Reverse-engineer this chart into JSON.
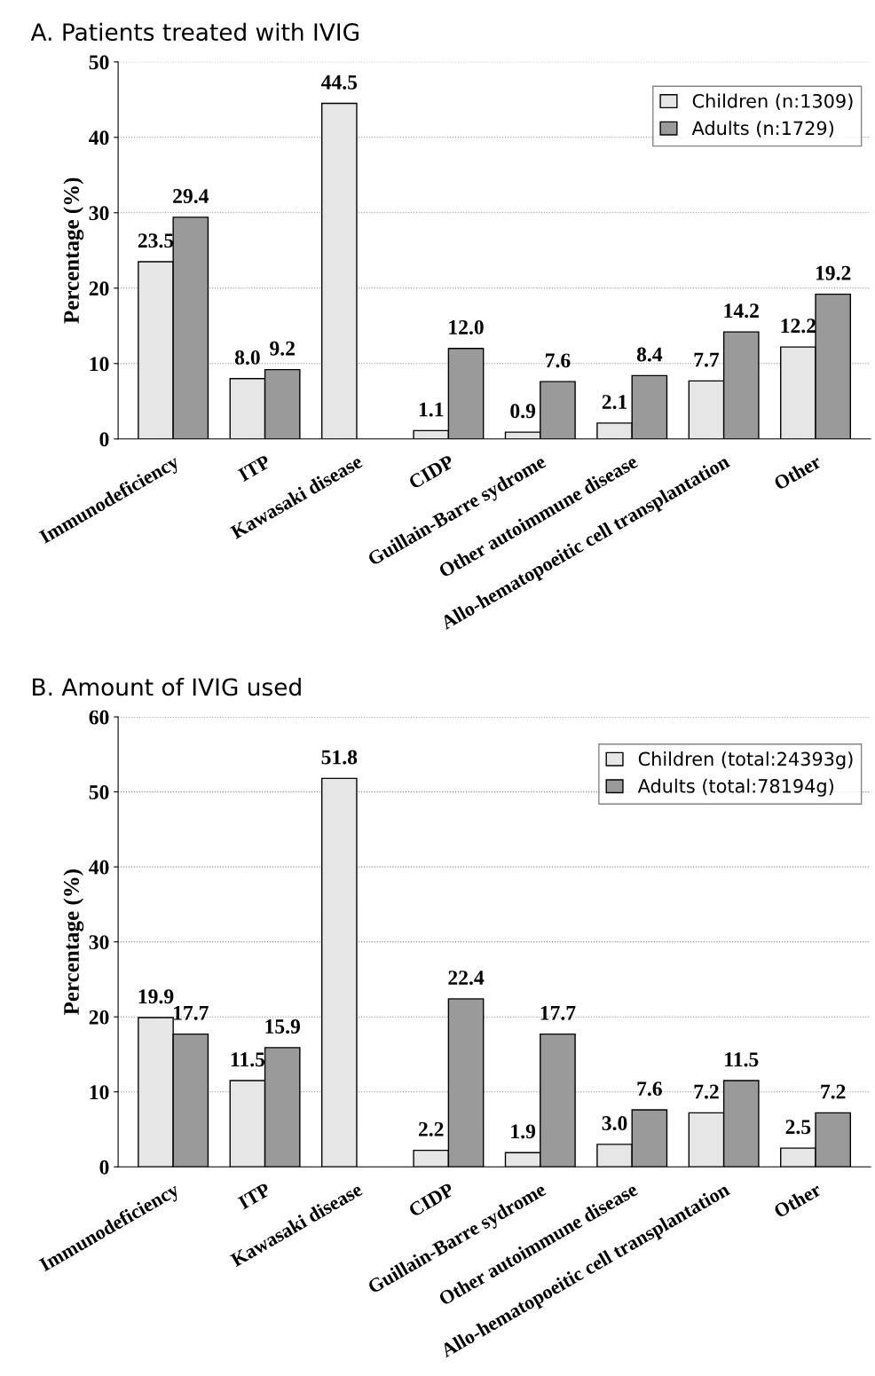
{
  "chart_data": [
    {
      "type": "bar",
      "title": "A. Patients treated with IVIG",
      "ylabel": "Percentage (%)",
      "categories": [
        "Immunodeficiency",
        "ITP",
        "Kawasaki disease",
        "CIDP",
        "Guillain-Barre sydrome",
        "Other autoimmune disease",
        "Allo-hematopoeitic cell transplantation",
        "Other"
      ],
      "series": [
        {
          "name": "Children (n:1309)",
          "color": "#e6e6e6",
          "values": [
            23.5,
            8.0,
            44.5,
            1.1,
            0.9,
            2.1,
            7.7,
            12.2
          ],
          "value_labels": [
            "23.5",
            "8.0",
            "44.5",
            "1.1",
            "0.9",
            "2.1",
            "7.7",
            "12.2"
          ]
        },
        {
          "name": "Adults (n:1729)",
          "color": "#9a9a9a",
          "values": [
            29.4,
            9.2,
            null,
            12.0,
            7.6,
            8.4,
            14.2,
            19.2
          ],
          "value_labels": [
            "29.4",
            "9.2",
            null,
            "12.0",
            "7.6",
            "8.4",
            "14.2",
            "19.2"
          ]
        }
      ],
      "ylim": [
        0,
        50
      ],
      "yticks": [
        0,
        10,
        20,
        30,
        40,
        50
      ],
      "grid": "y",
      "legend": "top right"
    },
    {
      "type": "bar",
      "title": "B. Amount of IVIG used",
      "ylabel": "Percentage (%)",
      "categories": [
        "Immunodeficiency",
        "ITP",
        "Kawasaki disease",
        "CIDP",
        "Guillain-Barre sydrome",
        "Other autoimmune disease",
        "Allo-hematopoeitic cell transplantation",
        "Other"
      ],
      "series": [
        {
          "name": "Children (total:24393g)",
          "color": "#e6e6e6",
          "values": [
            19.9,
            11.5,
            51.8,
            2.2,
            1.9,
            3.0,
            7.2,
            2.5
          ],
          "value_labels": [
            "19.9",
            "11.5",
            "51.8",
            "2.2",
            "1.9",
            "3.0",
            "7.2",
            "2.5"
          ]
        },
        {
          "name": "Adults (total:78194g)",
          "color": "#9a9a9a",
          "values": [
            17.7,
            15.9,
            null,
            22.4,
            17.7,
            7.6,
            11.5,
            7.2
          ],
          "value_labels": [
            "17.7",
            "15.9",
            null,
            "22.4",
            "17.7",
            "7.6",
            "11.5",
            "7.2"
          ]
        }
      ],
      "ylim": [
        0,
        60
      ],
      "yticks": [
        0,
        10,
        20,
        30,
        40,
        50,
        60
      ],
      "grid": "y",
      "legend": "top right"
    }
  ]
}
